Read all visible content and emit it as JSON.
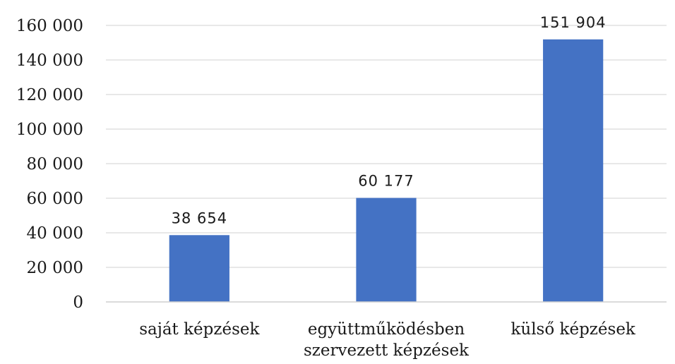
{
  "chart_data": {
    "type": "bar",
    "title": "",
    "xlabel": "",
    "ylabel": "",
    "categories": [
      [
        "saját képzések"
      ],
      [
        "együttműködésben",
        "szervezett képzések"
      ],
      [
        "külső képzések"
      ]
    ],
    "values": [
      38654,
      60177,
      151904
    ],
    "value_labels": [
      "38 654",
      "60 177",
      "151 904"
    ],
    "ylim": [
      0,
      160000
    ],
    "yticks": [
      0,
      20000,
      40000,
      60000,
      80000,
      100000,
      120000,
      140000,
      160000
    ],
    "ytick_labels": [
      "0",
      "20 000",
      "40 000",
      "60 000",
      "80 000",
      "100 000",
      "120 000",
      "140 000",
      "160 000"
    ],
    "grid": true,
    "legend": "none",
    "colors": {
      "bar": "#4472c4"
    }
  }
}
